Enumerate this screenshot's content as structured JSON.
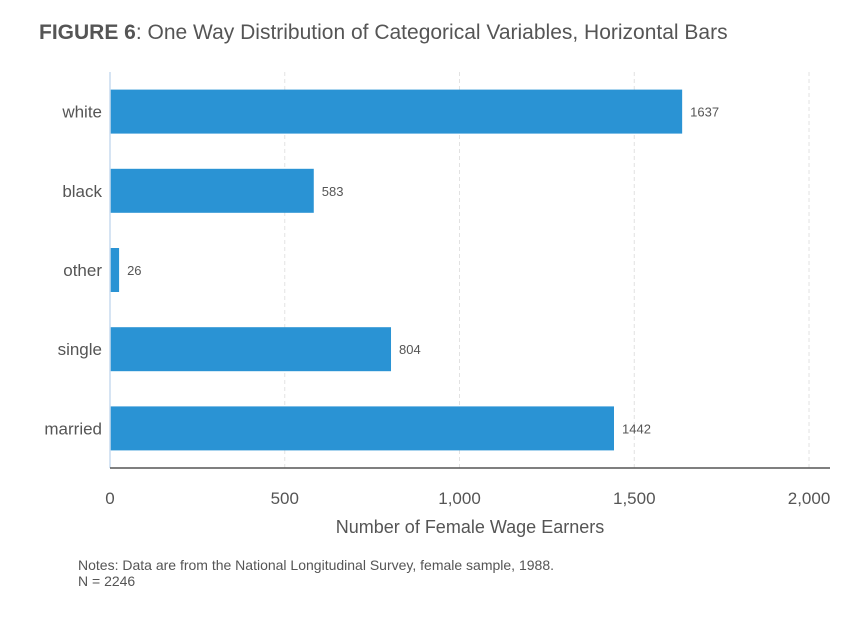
{
  "figure": {
    "label": "FIGURE 6",
    "caption": ": One Way Distribution of Categorical Variables, Horizontal Bars"
  },
  "notes": {
    "line1": "Notes: Data are from the National Longitudinal Survey, female sample, 1988.",
    "line2": "N = 2246"
  },
  "chart_data": {
    "type": "bar",
    "orientation": "horizontal",
    "categories": [
      "white",
      "black",
      "other",
      "single",
      "married"
    ],
    "values": [
      1637,
      583,
      26,
      804,
      1442
    ],
    "data_labels": [
      "1637",
      "583",
      "26",
      "804",
      "1442"
    ],
    "xlabel": "Number of Female Wage Earners",
    "ylabel": "",
    "xlim": [
      0,
      2060
    ],
    "xticks": [
      0,
      500,
      1000,
      1500,
      2000
    ],
    "xtick_labels": [
      "0",
      "500",
      "1,000",
      "1,500",
      "2,000"
    ],
    "grid": "vertical dashed",
    "bar_color": "#2a93d4",
    "grid_color": "#e2e2e2",
    "axis_color": "#555555"
  }
}
